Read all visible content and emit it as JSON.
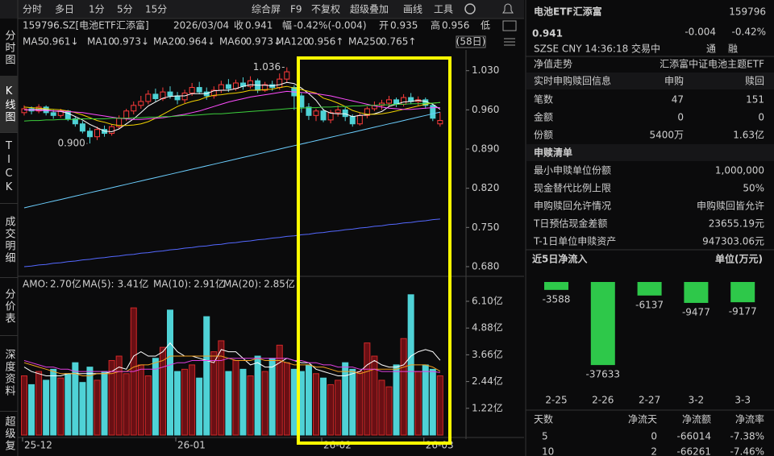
{
  "toolbar": {
    "left": [
      "分时",
      "多日",
      "1分",
      "5分",
      "15分"
    ],
    "right": [
      "综合屏",
      "F9",
      "不复权",
      "超级叠加",
      "画线",
      "工具"
    ]
  },
  "sidebar": [
    "分时图",
    "K线图",
    "TICK",
    "成交明细",
    "分价表",
    "深度资料",
    "超级复"
  ],
  "chart_data": [
    {
      "type": "candlestick",
      "header": {
        "code": "159796.SZ[电池ETF汇添富]",
        "date": "2026/03/04",
        "close_label": "收",
        "close": "0.941",
        "change_label": "幅",
        "change": "-0.42%(-0.004)",
        "open_label": "开",
        "open": "0.935",
        "high_label": "高",
        "high": "0.956",
        "low_label": "低",
        "period": "(58日)"
      },
      "categories": [
        "25-12",
        null,
        null,
        null,
        null,
        null,
        null,
        null,
        null,
        null,
        null,
        null,
        null,
        null,
        null,
        null,
        null,
        null,
        null,
        null,
        null,
        "26-01",
        null,
        null,
        null,
        null,
        null,
        null,
        null,
        null,
        null,
        null,
        null,
        null,
        null,
        null,
        null,
        null,
        null,
        null,
        null,
        "26-02",
        null,
        null,
        null,
        null,
        null,
        null,
        null,
        null,
        null,
        null,
        null,
        null,
        null,
        "26-03",
        null,
        null
      ],
      "open": [
        0.955,
        0.962,
        0.958,
        0.965,
        0.955,
        0.95,
        0.958,
        0.944,
        0.935,
        0.922,
        0.912,
        0.925,
        0.918,
        0.93,
        0.945,
        0.958,
        0.968,
        0.975,
        0.988,
        0.98,
        0.992,
        0.985,
        0.978,
        0.99,
        1.0,
        0.992,
        0.985,
        0.995,
        1.005,
        0.998,
        1.008,
        1.002,
        1.012,
        0.995,
        1.005,
        1.0,
        1.015,
        1.0,
        0.985,
        0.965,
        0.95,
        0.958,
        0.942,
        0.955,
        0.96,
        0.948,
        0.935,
        0.95,
        0.962,
        0.968,
        0.972,
        0.978,
        0.97,
        0.982,
        0.975,
        0.978,
        0.968,
        0.935
      ],
      "high": [
        0.968,
        0.966,
        0.97,
        0.968,
        0.96,
        0.962,
        0.96,
        0.948,
        0.94,
        0.928,
        0.93,
        0.932,
        0.934,
        0.95,
        0.962,
        0.975,
        0.985,
        0.995,
        0.998,
        1.0,
        1.002,
        0.992,
        0.996,
        1.008,
        1.01,
        1.0,
        1.002,
        1.012,
        1.015,
        1.014,
        1.018,
        1.02,
        1.016,
        1.01,
        1.012,
        1.025,
        1.036,
        1.004,
        0.99,
        0.972,
        0.962,
        0.962,
        0.96,
        0.968,
        0.965,
        0.952,
        0.955,
        0.966,
        0.975,
        0.978,
        0.985,
        0.982,
        0.988,
        0.99,
        0.984,
        0.982,
        0.972,
        0.956
      ],
      "low": [
        0.95,
        0.952,
        0.954,
        0.95,
        0.944,
        0.946,
        0.94,
        0.93,
        0.918,
        0.9,
        0.906,
        0.912,
        0.914,
        0.926,
        0.94,
        0.952,
        0.962,
        0.97,
        0.975,
        0.976,
        0.98,
        0.97,
        0.972,
        0.985,
        0.988,
        0.978,
        0.98,
        0.99,
        0.992,
        0.994,
        0.996,
        0.998,
        0.99,
        0.992,
        0.994,
        0.996,
        1.008,
        0.96,
        0.955,
        0.942,
        0.94,
        0.938,
        0.936,
        0.948,
        0.94,
        0.93,
        0.932,
        0.945,
        0.958,
        0.96,
        0.966,
        0.965,
        0.966,
        0.97,
        0.968,
        0.962,
        0.94,
        0.93
      ],
      "close": [
        0.962,
        0.958,
        0.965,
        0.955,
        0.95,
        0.958,
        0.944,
        0.935,
        0.922,
        0.912,
        0.925,
        0.918,
        0.93,
        0.945,
        0.958,
        0.968,
        0.975,
        0.988,
        0.98,
        0.992,
        0.985,
        0.978,
        0.99,
        1.0,
        0.992,
        0.985,
        0.995,
        1.005,
        0.998,
        1.008,
        1.002,
        1.012,
        0.995,
        1.005,
        1.0,
        1.015,
        1.028,
        0.985,
        0.965,
        0.95,
        0.958,
        0.942,
        0.955,
        0.96,
        0.948,
        0.935,
        0.95,
        0.962,
        0.968,
        0.972,
        0.978,
        0.97,
        0.982,
        0.975,
        0.978,
        0.968,
        0.945,
        0.941
      ],
      "up_color": "#ff3b3b",
      "down_color": "#4fd2d6",
      "lines": [
        {
          "name": "MA5",
          "legend_value": "0.961↓",
          "color": "#ffffff",
          "values": [
            0.96,
            0.96,
            0.961,
            0.96,
            0.958,
            0.957,
            0.954,
            0.948,
            0.942,
            0.934,
            0.928,
            0.922,
            0.921,
            0.926,
            0.935,
            0.944,
            0.955,
            0.967,
            0.974,
            0.981,
            0.984,
            0.985,
            0.985,
            0.989,
            0.989,
            0.989,
            0.994,
            0.995,
            0.995,
            0.998,
            1.002,
            1.005,
            1.004,
            1.004,
            1.003,
            1.005,
            1.009,
            1.007,
            0.999,
            0.989,
            0.977,
            0.96,
            0.954,
            0.953,
            0.953,
            0.948,
            0.95,
            0.951,
            0.953,
            0.957,
            0.966,
            0.97,
            0.974,
            0.975,
            0.977,
            0.975,
            0.97,
            0.961
          ]
        },
        {
          "name": "MA10",
          "legend_value": "0.973↓",
          "color": "#f2d200",
          "values": [
            0.965,
            0.964,
            0.963,
            0.962,
            0.961,
            0.96,
            0.958,
            0.955,
            0.951,
            0.946,
            0.941,
            0.938,
            0.934,
            0.932,
            0.932,
            0.933,
            0.935,
            0.939,
            0.945,
            0.952,
            0.959,
            0.966,
            0.971,
            0.975,
            0.978,
            0.983,
            0.986,
            0.987,
            0.989,
            0.99,
            0.992,
            0.995,
            0.995,
            0.996,
            0.997,
            1.0,
            1.002,
            0.999,
            0.996,
            0.993,
            0.99,
            0.981,
            0.977,
            0.972,
            0.966,
            0.959,
            0.955,
            0.952,
            0.952,
            0.953,
            0.955,
            0.958,
            0.961,
            0.964,
            0.967,
            0.97,
            0.972,
            0.973
          ]
        },
        {
          "name": "MA20",
          "legend_value": "0.964↓",
          "color": "#ff4dff",
          "values": [
            0.96,
            0.96,
            0.959,
            0.959,
            0.958,
            0.958,
            0.957,
            0.956,
            0.955,
            0.953,
            0.951,
            0.949,
            0.947,
            0.945,
            0.944,
            0.943,
            0.943,
            0.944,
            0.945,
            0.946,
            0.948,
            0.95,
            0.952,
            0.955,
            0.958,
            0.962,
            0.966,
            0.97,
            0.974,
            0.977,
            0.98,
            0.983,
            0.985,
            0.987,
            0.989,
            0.991,
            0.993,
            0.992,
            0.991,
            0.99,
            0.989,
            0.987,
            0.985,
            0.982,
            0.979,
            0.976,
            0.973,
            0.97,
            0.967,
            0.965,
            0.963,
            0.962,
            0.961,
            0.961,
            0.962,
            0.963,
            0.964,
            0.964
          ]
        },
        {
          "name": "MA60",
          "legend_value": "0.973↓",
          "color": "#3ccf3c",
          "values": [
            0.94,
            0.941,
            0.941,
            0.942,
            0.942,
            0.943,
            0.943,
            0.943,
            0.944,
            0.944,
            0.944,
            0.944,
            0.945,
            0.945,
            0.945,
            0.946,
            0.946,
            0.947,
            0.947,
            0.948,
            0.948,
            0.949,
            0.95,
            0.95,
            0.951,
            0.952,
            0.953,
            0.953,
            0.954,
            0.955,
            0.956,
            0.957,
            0.958,
            0.959,
            0.96,
            0.961,
            0.962,
            0.963,
            0.963,
            0.964,
            0.964,
            0.965,
            0.965,
            0.966,
            0.966,
            0.967,
            0.967,
            0.968,
            0.968,
            0.969,
            0.969,
            0.97,
            0.97,
            0.971,
            0.971,
            0.972,
            0.972,
            0.973
          ]
        },
        {
          "name": "MA120",
          "legend_value": "0.956↑",
          "color": "#6ccfff",
          "values": [
            0.785,
            0.788,
            0.791,
            0.794,
            0.797,
            0.8,
            0.803,
            0.806,
            0.809,
            0.812,
            0.815,
            0.818,
            0.821,
            0.824,
            0.827,
            0.83,
            0.833,
            0.836,
            0.839,
            0.842,
            0.845,
            0.848,
            0.851,
            0.854,
            0.857,
            0.86,
            0.863,
            0.866,
            0.869,
            0.872,
            0.875,
            0.878,
            0.881,
            0.884,
            0.887,
            0.89,
            0.893,
            0.896,
            0.899,
            0.902,
            0.905,
            0.908,
            0.911,
            0.914,
            0.917,
            0.92,
            0.923,
            0.926,
            0.929,
            0.932,
            0.935,
            0.938,
            0.941,
            0.944,
            0.947,
            0.95,
            0.953,
            0.956
          ]
        },
        {
          "name": "MA250",
          "legend_value": "0.765↑",
          "color": "#5468ff",
          "values": [
            0.68,
            0.681,
            0.683,
            0.684,
            0.686,
            0.687,
            0.689,
            0.69,
            0.692,
            0.693,
            0.695,
            0.696,
            0.698,
            0.699,
            0.701,
            0.702,
            0.704,
            0.705,
            0.707,
            0.708,
            0.71,
            0.711,
            0.713,
            0.714,
            0.716,
            0.717,
            0.719,
            0.72,
            0.722,
            0.723,
            0.725,
            0.726,
            0.728,
            0.729,
            0.731,
            0.732,
            0.734,
            0.735,
            0.737,
            0.738,
            0.74,
            0.741,
            0.743,
            0.744,
            0.746,
            0.747,
            0.749,
            0.75,
            0.752,
            0.753,
            0.755,
            0.756,
            0.758,
            0.759,
            0.761,
            0.762,
            0.764,
            0.765
          ]
        }
      ],
      "annotations": [
        {
          "value": 1.036,
          "label": "1.036"
        },
        {
          "value": 0.9,
          "label": "0.900"
        }
      ],
      "ylim": [
        0.667,
        1.067
      ],
      "yticks": [
        {
          "value": 1.03,
          "label": "1.030"
        },
        {
          "value": 0.96,
          "label": "0.960"
        },
        {
          "value": 0.89,
          "label": "0.890"
        },
        {
          "value": 0.82,
          "label": "0.820"
        },
        {
          "value": 0.75,
          "label": "0.750"
        },
        {
          "value": 0.68,
          "label": "0.680"
        }
      ]
    },
    {
      "type": "bar",
      "title": "AMO:",
      "title_value": "2.70亿",
      "values": [
        2.7,
        2.3,
        2.9,
        2.5,
        3.0,
        2.6,
        2.8,
        3.3,
        2.4,
        3.1,
        2.5,
        2.9,
        3.4,
        3.6,
        2.8,
        5.8,
        3.2,
        2.7,
        3.5,
        4.0,
        5.7,
        2.9,
        3.0,
        3.2,
        2.6,
        5.4,
        3.8,
        4.3,
        2.9,
        3.4,
        3.0,
        2.7,
        3.6,
        2.9,
        3.5,
        4.1,
        3.3,
        3.0,
        2.9,
        3.2,
        2.8,
        2.6,
        2.3,
        2.5,
        3.3,
        3.0,
        2.9,
        4.2,
        3.6,
        2.5,
        2.2,
        3.2,
        4.4,
        6.4,
        2.9,
        3.2,
        3.0,
        2.7
      ],
      "lines": [
        {
          "name": "MA(5):",
          "legend_value": "3.41亿",
          "color": "#ffffff",
          "values": [
            3.1,
            2.9,
            2.8,
            2.7,
            2.7,
            2.7,
            2.8,
            2.8,
            2.8,
            2.8,
            2.8,
            2.8,
            2.9,
            3.1,
            3.0,
            3.6,
            3.8,
            3.6,
            3.6,
            3.8,
            4.2,
            3.8,
            3.6,
            3.6,
            3.5,
            3.4,
            3.3,
            3.9,
            3.8,
            3.8,
            3.5,
            3.2,
            3.3,
            3.1,
            3.1,
            3.3,
            3.5,
            3.4,
            3.3,
            3.3,
            3.0,
            2.9,
            2.8,
            2.7,
            2.7,
            2.8,
            2.9,
            3.2,
            3.4,
            3.2,
            3.1,
            3.1,
            3.2,
            3.6,
            3.8,
            3.9,
            3.8,
            3.41
          ]
        },
        {
          "name": "MA(10):",
          "legend_value": "2.91亿",
          "color": "#f0a020",
          "values": [
            3.3,
            3.2,
            3.1,
            3.0,
            2.9,
            2.8,
            2.8,
            2.8,
            2.7,
            2.7,
            2.8,
            2.8,
            2.8,
            2.9,
            2.9,
            3.1,
            3.2,
            3.2,
            3.3,
            3.4,
            3.6,
            3.6,
            3.6,
            3.6,
            3.6,
            3.6,
            3.6,
            3.6,
            3.5,
            3.4,
            3.4,
            3.4,
            3.5,
            3.4,
            3.4,
            3.4,
            3.3,
            3.2,
            3.2,
            3.2,
            3.1,
            3.1,
            3.0,
            2.9,
            2.9,
            2.9,
            2.8,
            2.9,
            3.0,
            3.0,
            3.0,
            3.0,
            3.1,
            3.2,
            3.2,
            3.2,
            3.1,
            2.91
          ]
        },
        {
          "name": "MA(20):",
          "legend_value": "2.85亿",
          "color": "#e040e0",
          "values": [
            3.4,
            3.3,
            3.2,
            3.1,
            3.1,
            3.0,
            3.0,
            2.9,
            2.9,
            2.9,
            2.9,
            2.9,
            2.9,
            2.9,
            2.9,
            2.9,
            3.0,
            3.0,
            3.0,
            3.1,
            3.2,
            3.3,
            3.3,
            3.4,
            3.4,
            3.4,
            3.4,
            3.4,
            3.5,
            3.5,
            3.5,
            3.5,
            3.5,
            3.5,
            3.5,
            3.5,
            3.5,
            3.4,
            3.4,
            3.3,
            3.3,
            3.2,
            3.2,
            3.1,
            3.1,
            3.1,
            3.0,
            3.0,
            3.0,
            2.9,
            2.9,
            2.9,
            2.9,
            2.9,
            2.9,
            2.9,
            2.9,
            2.85
          ]
        }
      ],
      "ylim": [
        0,
        6.54
      ],
      "yticks": [
        {
          "value": 6.1,
          "label": "6.10亿"
        },
        {
          "value": 4.88,
          "label": "4.88亿"
        },
        {
          "value": 3.66,
          "label": "3.66亿"
        },
        {
          "value": 2.44,
          "label": "2.44亿"
        },
        {
          "value": 1.22,
          "label": "1.22亿"
        }
      ]
    },
    {
      "type": "bar",
      "title": "近5日净流入",
      "unit": "单位(万元)",
      "categories": [
        "2-25",
        "2-26",
        "2-27",
        "3-2",
        "3-3"
      ],
      "values": [
        -3588,
        -37633,
        -6137,
        -9477,
        -9177
      ],
      "color": "#2ec84a"
    }
  ],
  "quote": {
    "name": "电池ETF汇添富",
    "code": "159796",
    "price": "0.941",
    "change": "-0.004",
    "pct": "-0.42%",
    "meta": "SZSE  CNY  14:36:18  交易中",
    "tag1": "通",
    "tag2": "融"
  },
  "fund_info": {
    "nav": [
      "净值走势",
      "汇添富中证电池主题ETF"
    ],
    "realtime": {
      "title": "实时申购赎回信息",
      "cols": [
        "申购",
        "赎回"
      ],
      "rows": [
        [
          "笔数",
          "47",
          "151"
        ],
        [
          "金额",
          "0",
          "0"
        ],
        [
          "份额",
          "5400万",
          "1.63亿"
        ]
      ]
    },
    "list": {
      "title": "申赎清单",
      "rows": [
        [
          "最小申赎单位份额",
          "1,000,000"
        ],
        [
          "现金替代比例上限",
          "50%"
        ],
        [
          "申购赎回允许情况",
          "申购赎回皆允许"
        ],
        [
          "T日预估现金差额",
          "23655.19元"
        ],
        [
          "T-1日单位申赎资产",
          "947303.06元"
        ]
      ]
    }
  },
  "flow_table": {
    "columns": [
      "天数",
      "净流天",
      "净流额",
      "净流率"
    ],
    "rows": [
      [
        "5",
        "0",
        "-66014",
        "-7.38%"
      ],
      [
        "10",
        "2",
        "-66261",
        "-7.46%"
      ]
    ]
  }
}
